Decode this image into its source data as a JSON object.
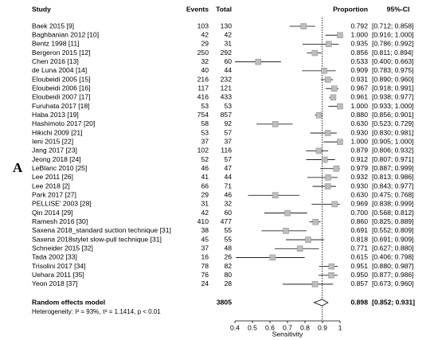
{
  "chart_data": {
    "type": "forest",
    "panel_label": "A",
    "columns": [
      "Study",
      "Events",
      "Total",
      "Proportion",
      "95%-CI"
    ],
    "studies": [
      "Baek 2015 [9]",
      "Baghbanian 2012 [10]",
      "Bentz 1998 [11]",
      "Bergeron 2015 [12]",
      "Chen 2016 [13]",
      "de Luna 2004 [14]",
      "Eloubeidi 2005 [15]",
      "Eloubeidi 2006 [16]",
      "Eloubeidi 2007 [17]",
      "Furuhata 2017 [18]",
      "Haba 2013 [19]",
      "Hashimoto 2017 [20]",
      "Hikichi 2009 [21]",
      "Ieni 2015 [22]",
      "Jang 2017 [23]",
      "Jeong 2018 [24]",
      "LeBlanc 2010 [25]",
      "Lee 2011 [26]",
      "Lee 2018 [2]",
      "Park 2017 [27]",
      "PELLISE' 2003 [28]",
      "Qin 2014 [29]",
      "Ramesh 2016 [30]",
      "Saxena 2018_standard suction technique [31]",
      "Saxena 2018stylet slow-pull technique [31]",
      "Schneider 2015 [32]",
      "Tada 2002 [33]",
      "Trisolini 2017 [34]",
      "Uehara 2011 [35]",
      "Yeon 2018 [37]"
    ],
    "events": [
      103,
      42,
      29,
      250,
      32,
      40,
      216,
      117,
      416,
      53,
      754,
      58,
      53,
      37,
      102,
      52,
      46,
      41,
      66,
      29,
      31,
      42,
      410,
      38,
      45,
      37,
      16,
      78,
      76,
      24
    ],
    "totals": [
      130,
      42,
      31,
      292,
      60,
      44,
      232,
      121,
      433,
      53,
      857,
      92,
      57,
      37,
      116,
      57,
      47,
      44,
      71,
      46,
      32,
      60,
      477,
      55,
      55,
      48,
      26,
      82,
      80,
      28
    ],
    "values": [
      0.792,
      1,
      0.935,
      0.856,
      0.533,
      0.909,
      0.931,
      0.967,
      0.961,
      1,
      0.88,
      0.63,
      0.93,
      1,
      0.879,
      0.912,
      0.979,
      0.932,
      0.93,
      0.63,
      0.969,
      0.7,
      0.86,
      0.691,
      0.818,
      0.771,
      0.615,
      0.951,
      0.95,
      0.857
    ],
    "value_labels": [
      "0.792",
      "1.000",
      "0.935",
      "0.856",
      "0.533",
      "0.909",
      "0.931",
      "0.967",
      "0.961",
      "1.000",
      "0.880",
      "0.630",
      "0.930",
      "1.000",
      "0.879",
      "0.912",
      "0.979",
      "0.932",
      "0.930",
      "0.630",
      "0.969",
      "0.700",
      "0.860",
      "0.691",
      "0.818",
      "0.771",
      "0.615",
      "0.951",
      "0.950",
      "0.857"
    ],
    "lower": [
      0.712,
      0.916,
      0.786,
      0.811,
      0.4,
      0.783,
      0.89,
      0.918,
      0.938,
      0.933,
      0.856,
      0.523,
      0.83,
      0.905,
      0.806,
      0.807,
      0.887,
      0.813,
      0.843,
      0.475,
      0.838,
      0.568,
      0.825,
      0.552,
      0.691,
      0.627,
      0.406,
      0.88,
      0.877,
      0.673
    ],
    "upper": [
      0.858,
      1,
      0.992,
      0.894,
      0.663,
      0.975,
      0.96,
      0.991,
      0.977,
      1,
      0.901,
      0.729,
      0.981,
      1,
      0.932,
      0.971,
      0.999,
      0.986,
      0.977,
      0.768,
      0.999,
      0.812,
      0.889,
      0.809,
      0.909,
      0.88,
      0.798,
      0.987,
      0.986,
      0.96
    ],
    "ci_labels": [
      "[0.712; 0.858]",
      "[0.916; 1.000]",
      "[0.786; 0.992]",
      "[0.811; 0.894]",
      "[0.400; 0.663]",
      "[0.783; 0.975]",
      "[0.890; 0.960]",
      "[0.918; 0.991]",
      "[0.938; 0.977]",
      "[0.933; 1.000]",
      "[0.856; 0.901]",
      "[0.523; 0.729]",
      "[0.830; 0.981]",
      "[0.905; 1.000]",
      "[0.806; 0.932]",
      "[0.807; 0.971]",
      "[0.887; 0.999]",
      "[0.813; 0.986]",
      "[0.843; 0.977]",
      "[0.475; 0.768]",
      "[0.838; 0.999]",
      "[0.568; 0.812]",
      "[0.825; 0.889]",
      "[0.552; 0.809]",
      "[0.691; 0.909]",
      "[0.627; 0.880]",
      "[0.406; 0.798]",
      "[0.880; 0.987]",
      "[0.877; 0.986]",
      "[0.673; 0.960]"
    ],
    "summary": {
      "label": "Random effects model",
      "total": 3805,
      "value": 0.898,
      "lower": 0.852,
      "upper": 0.931,
      "ci_label": "[0.852; 0.931]"
    },
    "heterogeneity": "Heterogeneity: I² = 93%, τ² = 1.1414, p < 0.01",
    "xlabel": "Sensitivity",
    "xlim": [
      0.4,
      1
    ],
    "xticks": [
      0.4,
      0.5,
      0.6,
      0.7,
      0.8,
      0.9,
      1
    ],
    "square_color": "#bdbdbd"
  }
}
